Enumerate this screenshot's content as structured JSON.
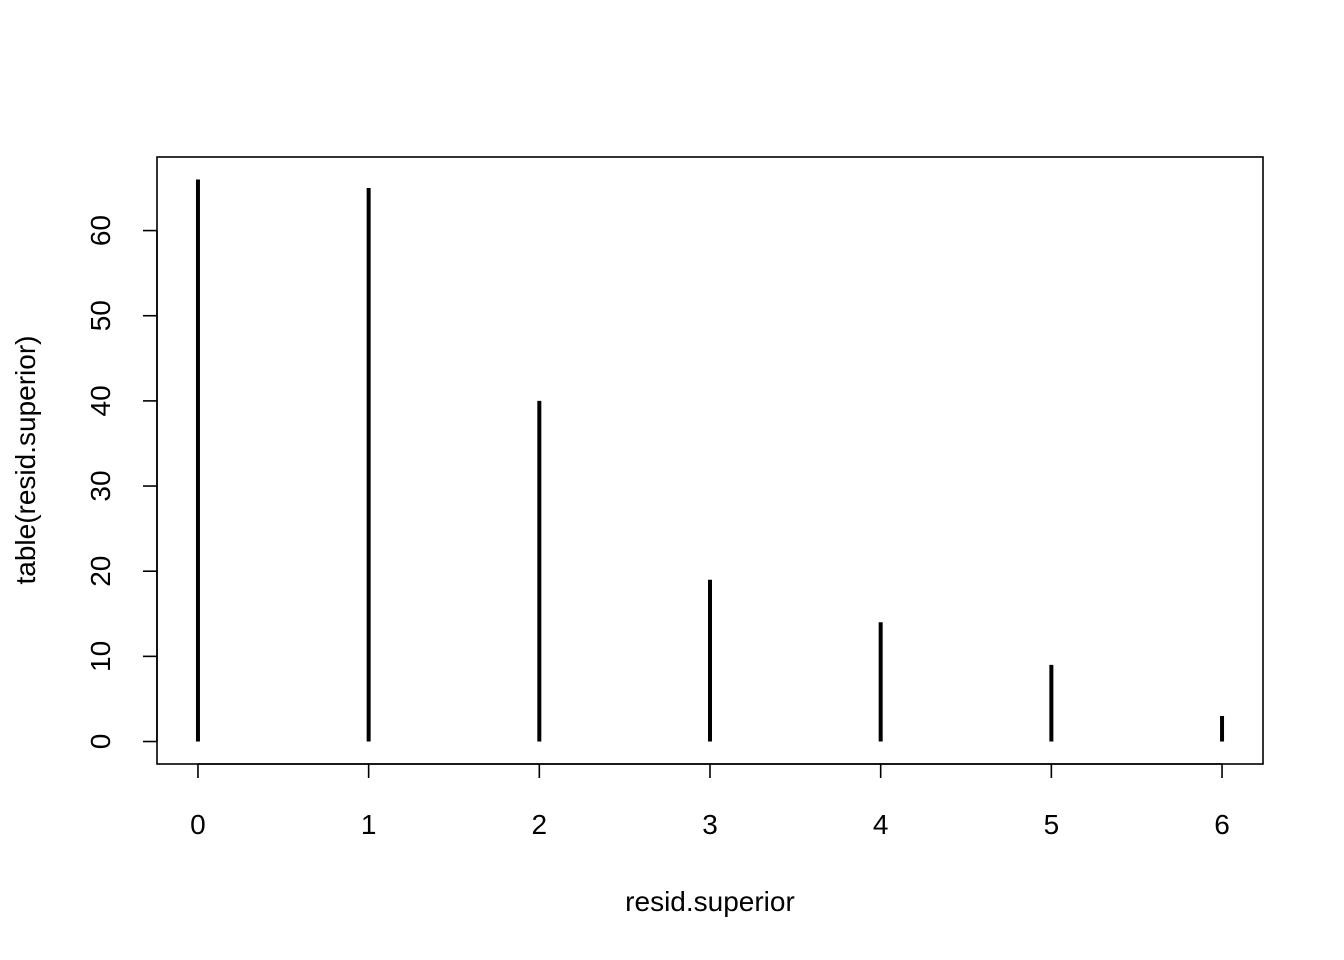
{
  "chart_data": {
    "type": "bar",
    "style": "vertical-lines",
    "title": "",
    "xlabel": "resid.superior",
    "ylabel": "table(resid.superior)",
    "x": [
      0,
      1,
      2,
      3,
      4,
      5,
      6
    ],
    "values": [
      66,
      65,
      40,
      19,
      14,
      9,
      3
    ],
    "xticks": [
      "0",
      "1",
      "2",
      "3",
      "4",
      "5",
      "6"
    ],
    "yticks": [
      "0",
      "10",
      "20",
      "30",
      "40",
      "50",
      "60"
    ],
    "xlim": [
      -0.24,
      6.24
    ],
    "ylim": [
      -2.64,
      68.64
    ],
    "grid": false,
    "legend": "none",
    "line_color": "#000000"
  }
}
